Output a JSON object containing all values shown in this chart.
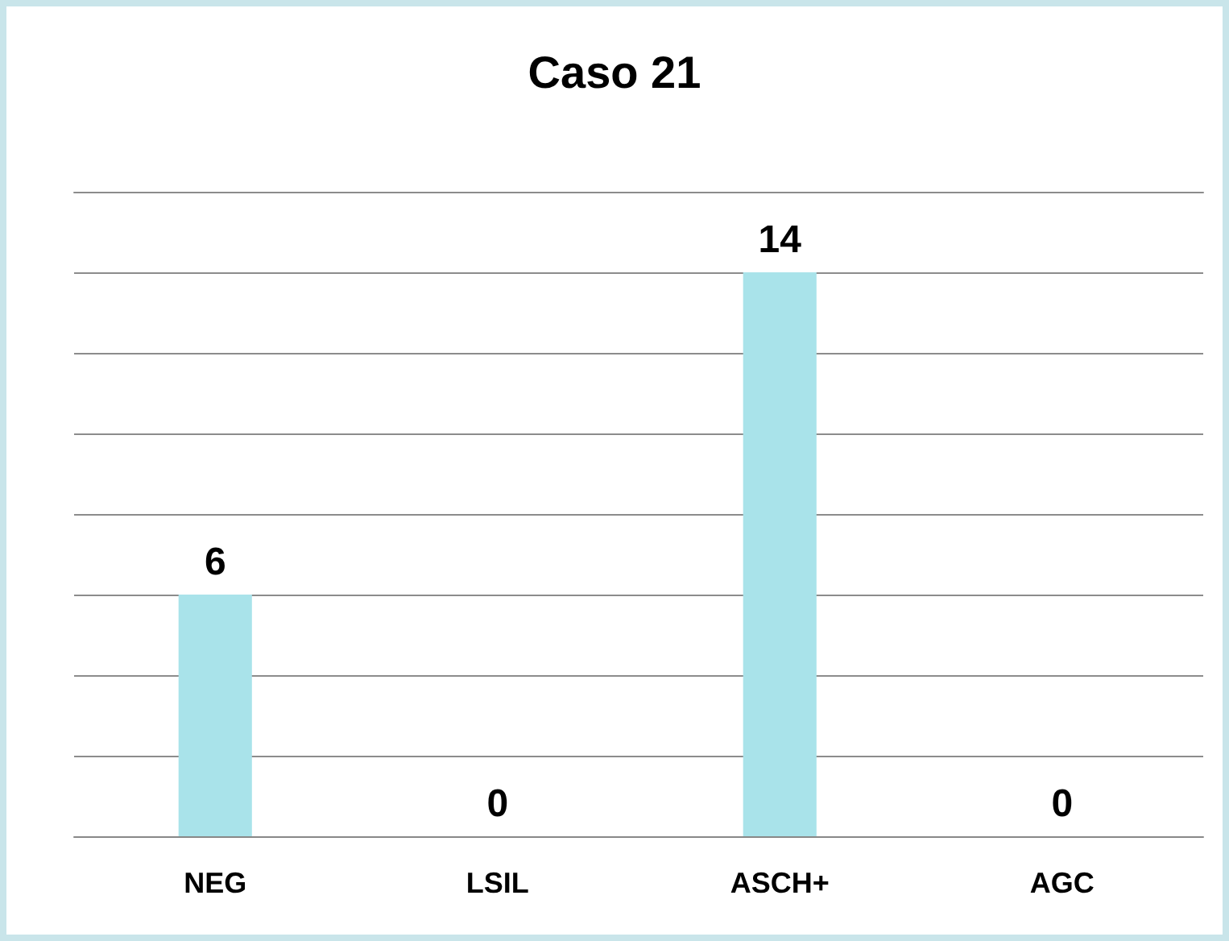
{
  "chart_data": {
    "type": "bar",
    "title": "Caso 21",
    "categories": [
      "NEG",
      "LSIL",
      "ASCH+",
      "AGC"
    ],
    "values": [
      6,
      0,
      14,
      0
    ],
    "color": "#a9e3ea",
    "ylim": [
      0,
      16
    ],
    "yticks": [
      {
        "value": 0,
        "label": null
      },
      {
        "value": 2,
        "label": null
      },
      {
        "value": 4,
        "label": null
      },
      {
        "value": 6,
        "label": null
      },
      {
        "value": 8,
        "label": null
      },
      {
        "value": 10,
        "label": null
      },
      {
        "value": 12,
        "label": null
      },
      {
        "value": 14,
        "label": null
      }
    ],
    "tick_labels": "x",
    "grid": "y",
    "data_labels": true
  }
}
